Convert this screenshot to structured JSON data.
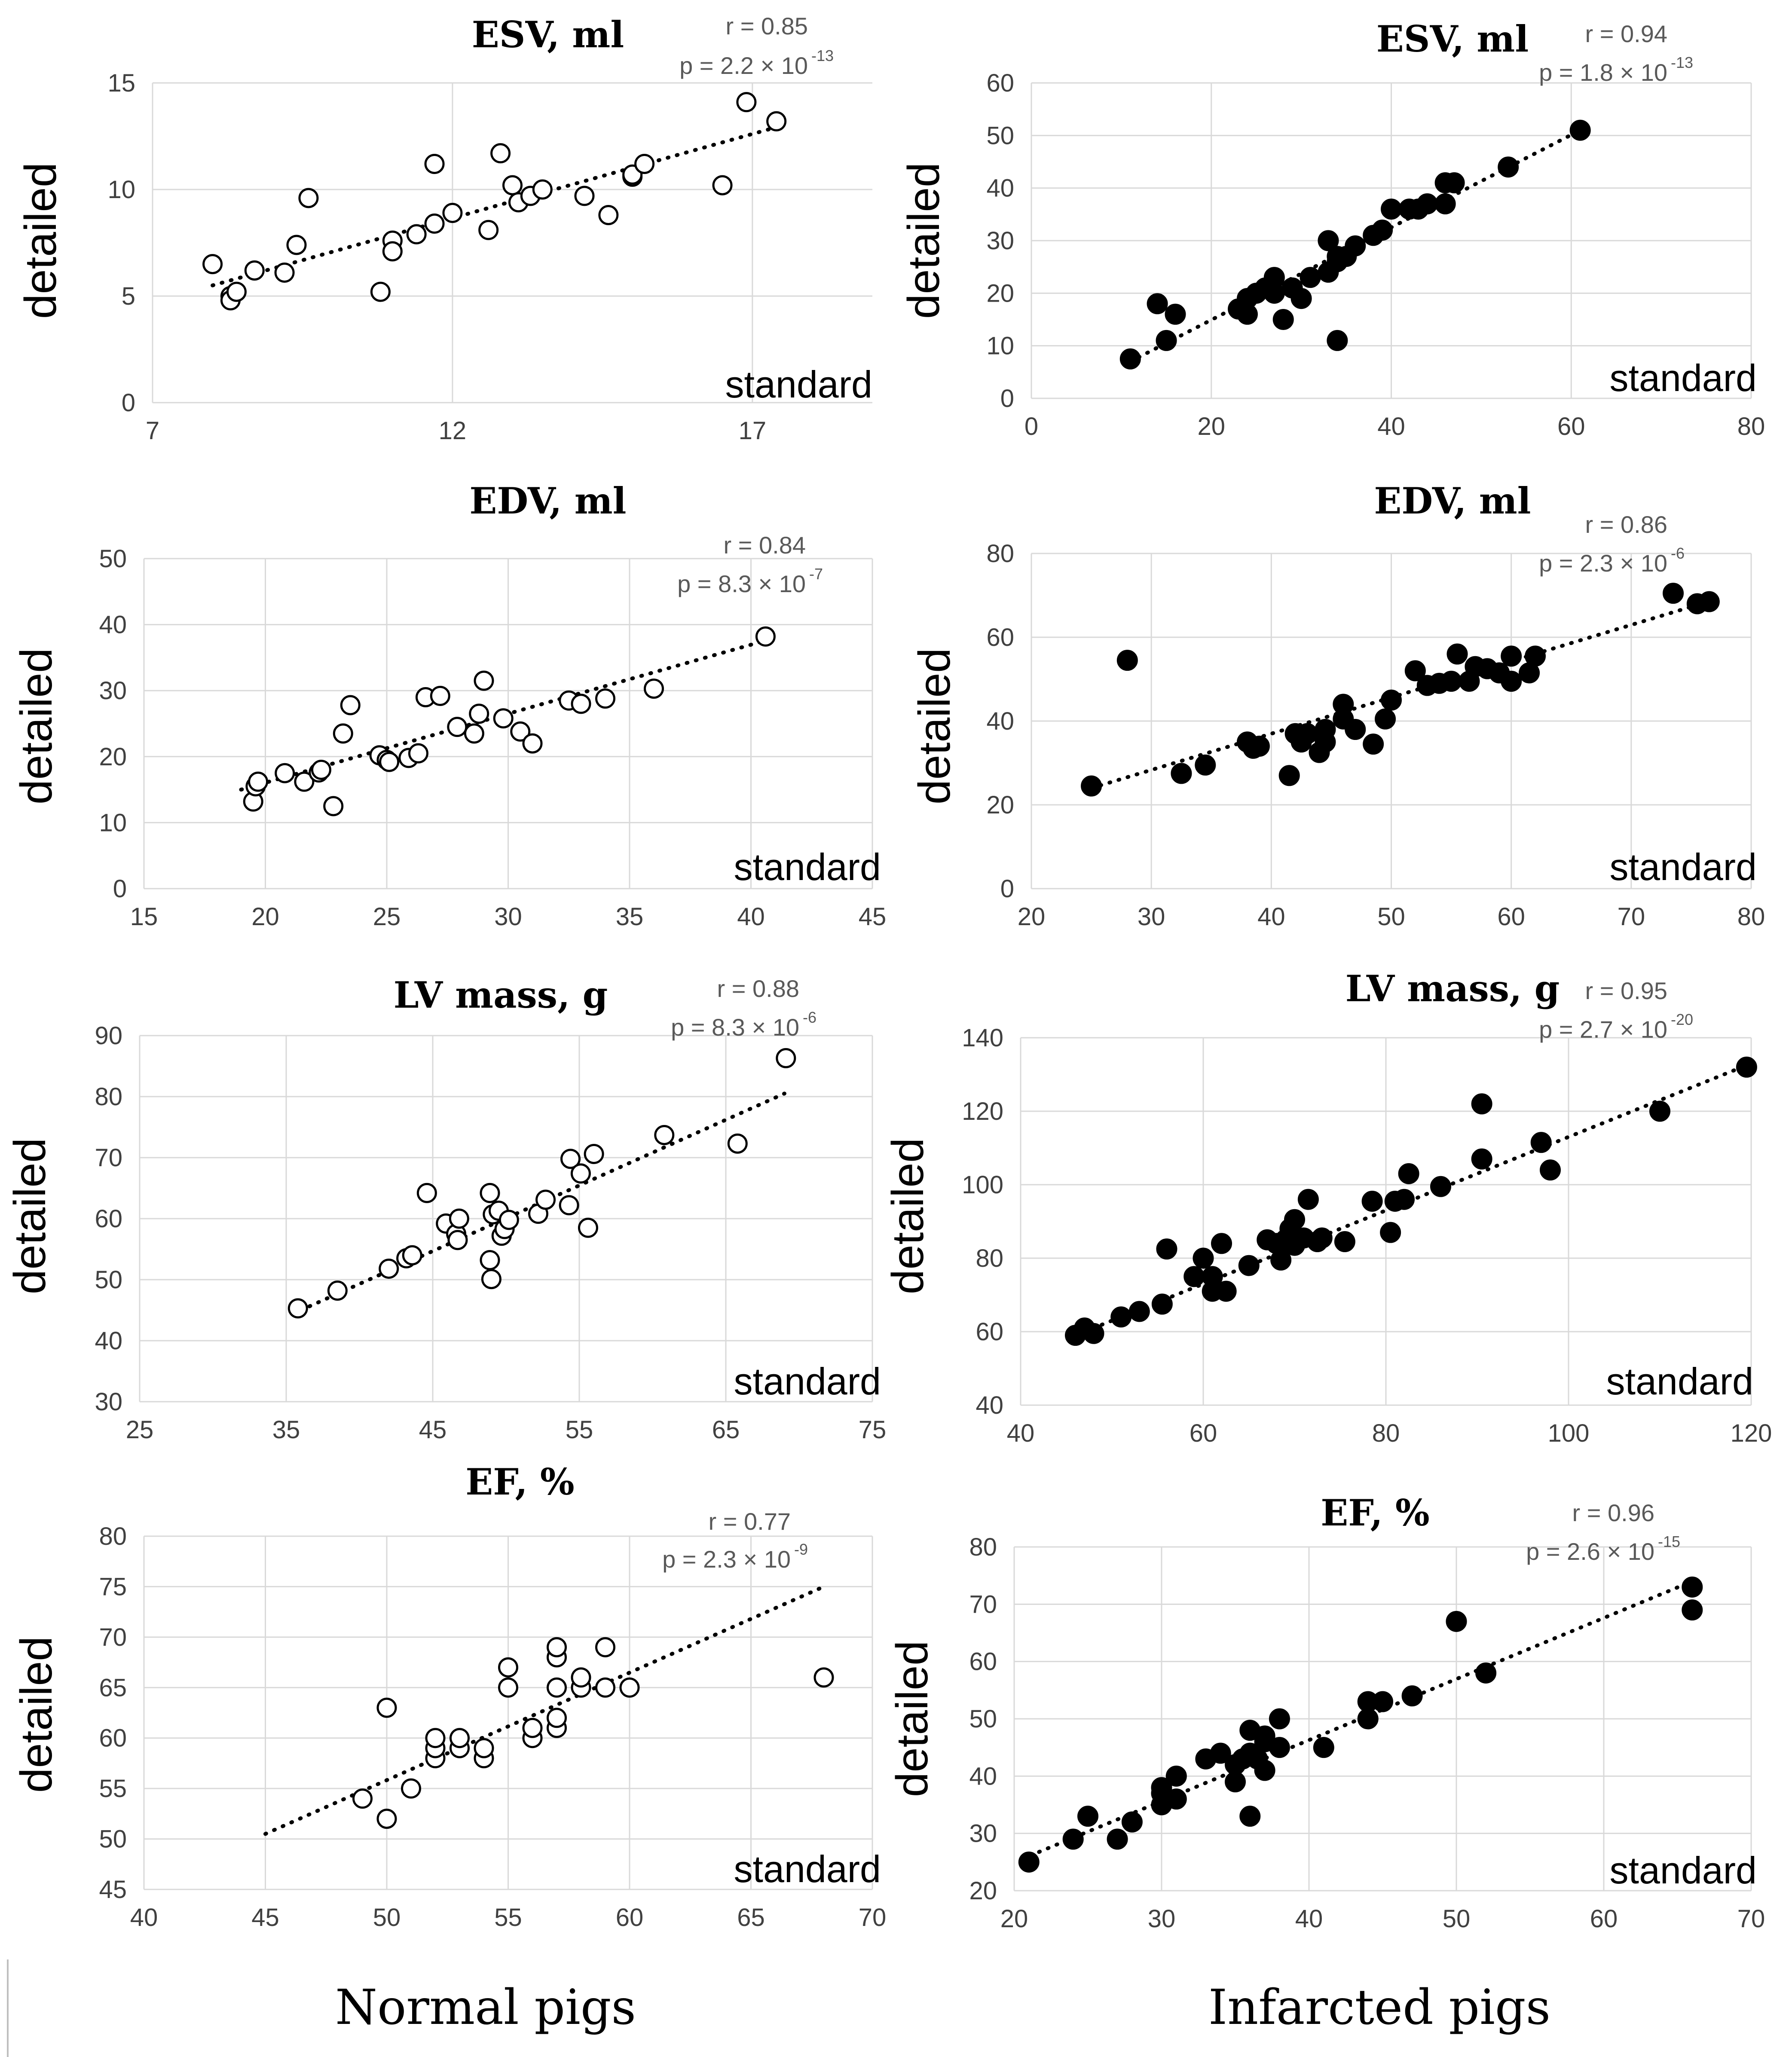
{
  "colors": {
    "grid": "#d9d9d9",
    "tick": "#404040",
    "stat": "#595959",
    "marker": "#000000"
  },
  "footer": {
    "left": "Normal pigs",
    "right": "Infarcted pigs"
  },
  "chart_data": [
    {
      "id": "esv-normal",
      "type": "scatter",
      "title": "ESV, ml",
      "xlabel": "standard",
      "ylabel": "detailed",
      "xlim": [
        7,
        19
      ],
      "ylim": [
        0,
        15
      ],
      "xticks": [
        7,
        12,
        17
      ],
      "yticks": [
        0,
        5,
        10,
        15
      ],
      "marker": "open",
      "r_text": "r = 0.85",
      "p_text": "p = 2.2 × 10",
      "p_exp": "-13",
      "trend": [
        [
          8.0,
          5.5
        ],
        [
          17.5,
          13.0
        ]
      ],
      "points": [
        [
          8.0,
          6.5
        ],
        [
          8.3,
          5.0
        ],
        [
          8.3,
          4.8
        ],
        [
          8.4,
          5.2
        ],
        [
          8.7,
          6.2
        ],
        [
          9.2,
          6.1
        ],
        [
          9.4,
          7.4
        ],
        [
          9.6,
          9.6
        ],
        [
          10.8,
          5.2
        ],
        [
          11.0,
          7.6
        ],
        [
          11.0,
          7.1
        ],
        [
          11.4,
          7.9
        ],
        [
          11.7,
          8.4
        ],
        [
          11.7,
          11.2
        ],
        [
          12.0,
          8.9
        ],
        [
          12.6,
          8.1
        ],
        [
          12.8,
          11.7
        ],
        [
          13.0,
          10.2
        ],
        [
          13.1,
          9.4
        ],
        [
          13.3,
          9.7
        ],
        [
          13.5,
          10.0
        ],
        [
          14.2,
          9.7
        ],
        [
          14.6,
          8.8
        ],
        [
          15.0,
          10.6
        ],
        [
          15.0,
          10.7
        ],
        [
          15.2,
          11.2
        ],
        [
          16.5,
          10.2
        ],
        [
          16.9,
          14.1
        ],
        [
          17.4,
          13.2
        ]
      ]
    },
    {
      "id": "esv-infarct",
      "type": "scatter",
      "title": "ESV, ml",
      "xlabel": "standard",
      "ylabel": "detailed",
      "xlim": [
        0,
        80
      ],
      "ylim": [
        0,
        60
      ],
      "xticks": [
        0,
        20,
        40,
        60,
        80
      ],
      "yticks": [
        0,
        10,
        20,
        30,
        40,
        50,
        60
      ],
      "marker": "filled",
      "r_text": "r = 0.94",
      "p_text": "p = 1.8 × 10",
      "p_exp": "-13",
      "trend": [
        [
          11,
          7
        ],
        [
          61,
          51
        ]
      ],
      "points": [
        [
          11,
          7.5
        ],
        [
          14,
          18
        ],
        [
          15,
          11
        ],
        [
          16,
          16
        ],
        [
          23,
          17
        ],
        [
          24,
          16
        ],
        [
          24,
          19
        ],
        [
          25,
          20
        ],
        [
          26,
          21
        ],
        [
          27,
          23
        ],
        [
          27,
          20
        ],
        [
          28,
          15
        ],
        [
          29,
          21
        ],
        [
          30,
          19
        ],
        [
          31,
          23
        ],
        [
          33,
          30
        ],
        [
          33,
          24
        ],
        [
          34,
          27
        ],
        [
          34,
          26
        ],
        [
          34,
          11
        ],
        [
          35,
          27
        ],
        [
          36,
          29
        ],
        [
          38,
          31
        ],
        [
          39,
          32
        ],
        [
          40,
          36
        ],
        [
          42,
          36
        ],
        [
          43,
          36
        ],
        [
          44,
          37
        ],
        [
          46,
          37
        ],
        [
          46,
          41
        ],
        [
          47,
          41
        ],
        [
          53,
          44
        ],
        [
          61,
          51
        ]
      ]
    },
    {
      "id": "edv-normal",
      "type": "scatter",
      "title": "EDV, ml",
      "xlabel": "standard",
      "ylabel": "detailed",
      "xlim": [
        15,
        45
      ],
      "ylim": [
        0,
        50
      ],
      "xticks": [
        15,
        20,
        25,
        30,
        35,
        40,
        45
      ],
      "yticks": [
        0,
        10,
        20,
        30,
        40,
        50
      ],
      "marker": "open",
      "r_text": "r = 0.84",
      "p_text": "p = 8.3 × 10",
      "p_exp": "-7",
      "trend": [
        [
          19,
          15
        ],
        [
          41,
          38
        ]
      ],
      "points": [
        [
          19.5,
          13.2
        ],
        [
          19.6,
          15.5
        ],
        [
          19.7,
          16.2
        ],
        [
          20.8,
          17.5
        ],
        [
          21.6,
          16.2
        ],
        [
          22.2,
          17.6
        ],
        [
          22.3,
          18.0
        ],
        [
          22.8,
          12.5
        ],
        [
          23.2,
          23.5
        ],
        [
          23.5,
          27.8
        ],
        [
          24.7,
          20.2
        ],
        [
          25.0,
          19.5
        ],
        [
          25.1,
          19.2
        ],
        [
          25.9,
          19.8
        ],
        [
          26.3,
          20.5
        ],
        [
          26.6,
          29.0
        ],
        [
          27.2,
          29.2
        ],
        [
          27.9,
          24.5
        ],
        [
          28.6,
          23.5
        ],
        [
          28.8,
          26.5
        ],
        [
          29.0,
          31.5
        ],
        [
          29.8,
          25.8
        ],
        [
          30.5,
          23.8
        ],
        [
          31.0,
          22.0
        ],
        [
          32.5,
          28.5
        ],
        [
          33.0,
          28.0
        ],
        [
          34.0,
          28.8
        ],
        [
          36.0,
          30.3
        ],
        [
          40.6,
          38.2
        ]
      ]
    },
    {
      "id": "edv-infarct",
      "type": "scatter",
      "title": "EDV, ml",
      "xlabel": "standard",
      "ylabel": "detailed",
      "xlim": [
        20,
        80
      ],
      "ylim": [
        0,
        80
      ],
      "xticks": [
        20,
        30,
        40,
        50,
        60,
        70,
        80
      ],
      "yticks": [
        0,
        20,
        40,
        60,
        80
      ],
      "marker": "filled",
      "r_text": "r = 0.86",
      "p_text": "p = 2.3 × 10",
      "p_exp": "-6",
      "trend": [
        [
          25,
          24
        ],
        [
          77,
          69
        ]
      ],
      "points": [
        [
          25,
          24.5
        ],
        [
          28,
          54.5
        ],
        [
          32.5,
          27.5
        ],
        [
          34.5,
          29.5
        ],
        [
          38,
          35
        ],
        [
          38.5,
          33.5
        ],
        [
          39,
          34
        ],
        [
          41.5,
          27
        ],
        [
          42,
          37
        ],
        [
          42.5,
          35
        ],
        [
          43,
          37
        ],
        [
          44,
          32.5
        ],
        [
          44.5,
          35
        ],
        [
          44.5,
          38
        ],
        [
          46,
          44
        ],
        [
          46,
          40.5
        ],
        [
          47,
          38
        ],
        [
          48.5,
          34.5
        ],
        [
          49.5,
          40.5
        ],
        [
          50,
          45
        ],
        [
          52,
          52
        ],
        [
          53,
          48.5
        ],
        [
          54,
          49
        ],
        [
          55,
          49.5
        ],
        [
          55.5,
          56
        ],
        [
          56.5,
          49.5
        ],
        [
          57,
          53
        ],
        [
          58,
          52.5
        ],
        [
          59,
          51.5
        ],
        [
          60,
          49.5
        ],
        [
          60,
          55.5
        ],
        [
          61.5,
          51.5
        ],
        [
          62,
          55.5
        ],
        [
          73.5,
          70.5
        ],
        [
          75.5,
          68
        ],
        [
          76.5,
          68.5
        ]
      ]
    },
    {
      "id": "lvmass-normal",
      "type": "scatter",
      "title": "LV mass, g",
      "xlabel": "standard",
      "ylabel": "detailed",
      "xlim": [
        25,
        75
      ],
      "ylim": [
        30,
        90
      ],
      "xticks": [
        25,
        35,
        45,
        55,
        65,
        75
      ],
      "yticks": [
        30,
        40,
        50,
        60,
        70,
        80,
        90
      ],
      "marker": "open",
      "r_text": "r = 0.88",
      "p_text": "p =  8.3 × 10",
      "p_exp": "-6",
      "trend": [
        [
          36,
          45
        ],
        [
          69,
          80.5
        ]
      ],
      "points": [
        [
          35.8,
          45.3
        ],
        [
          38.5,
          48.2
        ],
        [
          42.0,
          51.8
        ],
        [
          43.2,
          53.5
        ],
        [
          43.6,
          54.0
        ],
        [
          44.6,
          64.2
        ],
        [
          45.9,
          59.2
        ],
        [
          46.6,
          57.5
        ],
        [
          46.7,
          56.5
        ],
        [
          46.8,
          60.0
        ],
        [
          48.9,
          53.2
        ],
        [
          48.9,
          64.2
        ],
        [
          49.0,
          50.1
        ],
        [
          49.1,
          60.7
        ],
        [
          49.5,
          61.3
        ],
        [
          49.7,
          57.2
        ],
        [
          49.9,
          58.3
        ],
        [
          50.2,
          59.8
        ],
        [
          52.2,
          60.8
        ],
        [
          52.7,
          63.1
        ],
        [
          54.3,
          62.2
        ],
        [
          54.4,
          69.8
        ],
        [
          55.1,
          67.4
        ],
        [
          55.6,
          58.5
        ],
        [
          56.0,
          70.6
        ],
        [
          60.8,
          73.7
        ],
        [
          65.8,
          72.3
        ],
        [
          69.1,
          86.3
        ]
      ]
    },
    {
      "id": "lvmass-infarct",
      "type": "scatter",
      "title": "LV mass, g",
      "xlabel": "standard",
      "ylabel": "detailed",
      "xlim": [
        40,
        120
      ],
      "ylim": [
        40,
        140
      ],
      "xticks": [
        40,
        60,
        80,
        100,
        120
      ],
      "yticks": [
        40,
        60,
        80,
        100,
        120,
        140
      ],
      "marker": "filled",
      "r_text": "r = 0.95",
      "p_text": "p = 2.7 × 10",
      "p_exp": "-20",
      "trend": [
        [
          46,
          59
        ],
        [
          120,
          133
        ]
      ],
      "points": [
        [
          46,
          59
        ],
        [
          47,
          61
        ],
        [
          48,
          59.5
        ],
        [
          51,
          64
        ],
        [
          53,
          65.5
        ],
        [
          55.5,
          67.5
        ],
        [
          56,
          82.5
        ],
        [
          59,
          75
        ],
        [
          60,
          80
        ],
        [
          61,
          75
        ],
        [
          61,
          71
        ],
        [
          62,
          84
        ],
        [
          62.5,
          71
        ],
        [
          65,
          78
        ],
        [
          67,
          85
        ],
        [
          68,
          84
        ],
        [
          68.5,
          79.5
        ],
        [
          69,
          85
        ],
        [
          69.5,
          88
        ],
        [
          70,
          83.5
        ],
        [
          70,
          90.5
        ],
        [
          71,
          85.5
        ],
        [
          71.5,
          96
        ],
        [
          72.5,
          84.5
        ],
        [
          73,
          85.5
        ],
        [
          75.5,
          84.5
        ],
        [
          78.5,
          95.5
        ],
        [
          80.5,
          87
        ],
        [
          81,
          95.5
        ],
        [
          82,
          96
        ],
        [
          82.5,
          103
        ],
        [
          86,
          99.5
        ],
        [
          90.5,
          122
        ],
        [
          90.5,
          107
        ],
        [
          97,
          111.5
        ],
        [
          98,
          104
        ],
        [
          110,
          120
        ],
        [
          119.5,
          132
        ]
      ]
    },
    {
      "id": "ef-normal",
      "type": "scatter",
      "title": "EF, %",
      "xlabel": "standard",
      "ylabel": "detailed",
      "xlim": [
        40,
        70
      ],
      "ylim": [
        45,
        80
      ],
      "xticks": [
        40,
        45,
        50,
        55,
        60,
        65,
        70
      ],
      "yticks": [
        45,
        50,
        55,
        60,
        65,
        70,
        75,
        80
      ],
      "marker": "open",
      "r_text": "r = 0.77",
      "p_text": "p = 2.3 × 10",
      "p_exp": "-9",
      "trend": [
        [
          45,
          50.5
        ],
        [
          68,
          75
        ]
      ],
      "points": [
        [
          49,
          54
        ],
        [
          50,
          52
        ],
        [
          50,
          63
        ],
        [
          51,
          55
        ],
        [
          52,
          58
        ],
        [
          52,
          59
        ],
        [
          52,
          60
        ],
        [
          53,
          59
        ],
        [
          53,
          60
        ],
        [
          54,
          58
        ],
        [
          54,
          59
        ],
        [
          55,
          65
        ],
        [
          55,
          67
        ],
        [
          56,
          60
        ],
        [
          56,
          61
        ],
        [
          57,
          61
        ],
        [
          57,
          62
        ],
        [
          57,
          65
        ],
        [
          57,
          68
        ],
        [
          57,
          69
        ],
        [
          58,
          65
        ],
        [
          58,
          66
        ],
        [
          59,
          65
        ],
        [
          59,
          69
        ],
        [
          60,
          65
        ],
        [
          68,
          66
        ]
      ]
    },
    {
      "id": "ef-infarct",
      "type": "scatter",
      "title": "EF, %",
      "xlabel": "standard",
      "ylabel": "detailed",
      "xlim": [
        20,
        70
      ],
      "ylim": [
        20,
        80
      ],
      "xticks": [
        20,
        30,
        40,
        50,
        60,
        70
      ],
      "yticks": [
        20,
        30,
        40,
        50,
        60,
        70,
        80
      ],
      "marker": "filled",
      "r_text": "r = 0.96",
      "p_text": "p = 2.6 × 10",
      "p_exp": "-15",
      "trend": [
        [
          20.5,
          25.5
        ],
        [
          66,
          74
        ]
      ],
      "points": [
        [
          21,
          25
        ],
        [
          24,
          29
        ],
        [
          25,
          33
        ],
        [
          27,
          29
        ],
        [
          28,
          32
        ],
        [
          30,
          35
        ],
        [
          30,
          37
        ],
        [
          30,
          38
        ],
        [
          31,
          36
        ],
        [
          31,
          40
        ],
        [
          33,
          43
        ],
        [
          34,
          44
        ],
        [
          35,
          39
        ],
        [
          35,
          42
        ],
        [
          35.5,
          43
        ],
        [
          36,
          33
        ],
        [
          36,
          44
        ],
        [
          36,
          48
        ],
        [
          36.5,
          43
        ],
        [
          37,
          41
        ],
        [
          37,
          46
        ],
        [
          37,
          47
        ],
        [
          38,
          45
        ],
        [
          38,
          50
        ],
        [
          41,
          45
        ],
        [
          44,
          50
        ],
        [
          44,
          53
        ],
        [
          45,
          53
        ],
        [
          47,
          54
        ],
        [
          50,
          67
        ],
        [
          52,
          58
        ],
        [
          66,
          69
        ],
        [
          66,
          73
        ]
      ]
    }
  ]
}
